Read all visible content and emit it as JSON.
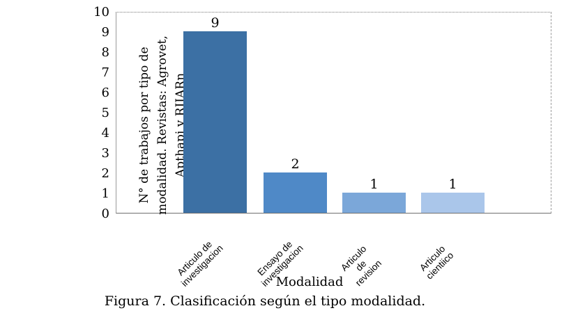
{
  "figure": {
    "caption": "Figura 7. Clasificación según el tipo modalidad."
  },
  "chart_data": {
    "type": "bar",
    "title": "",
    "categories": [
      "Articulo de investigacion",
      "Ensayo de investigacion",
      "Articulo de revision",
      "Articulo cientiico"
    ],
    "category_lines": [
      [
        "Articulo de",
        "investigacion"
      ],
      [
        "Ensayo de",
        "investigacion"
      ],
      [
        "Articulo",
        "de",
        "revision"
      ],
      [
        "Articulo",
        "cientiico"
      ]
    ],
    "values": [
      9,
      2,
      1,
      1
    ],
    "data_labels": [
      "9",
      "2",
      "1",
      "1"
    ],
    "xlabel": "Modalidad",
    "ylabel": "N° de trabajos por tipo de modalidad. Revistas: Agrovet, Apthapi y RIIARn",
    "ylabel_lines": [
      "N° de trabajos por tipo de",
      "modalidad. Revistas: Agrovet,",
      "Apthapi y RIIARn"
    ],
    "ylim": [
      0,
      10
    ],
    "yticks": [
      0,
      1,
      2,
      3,
      4,
      5,
      6,
      7,
      8,
      9,
      10
    ],
    "grid": false,
    "legend": "none",
    "bar_colors": [
      "#3c70a4",
      "#4f89c7",
      "#7ba7d9",
      "#aac6ea"
    ]
  }
}
